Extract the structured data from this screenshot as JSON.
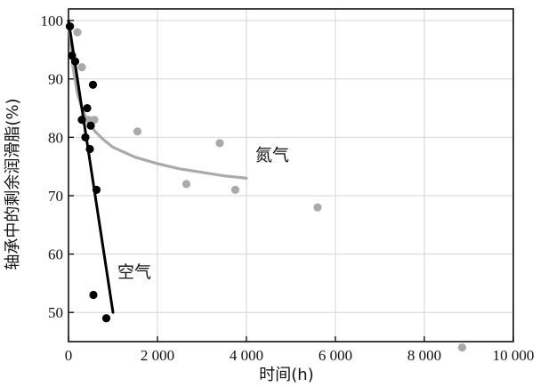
{
  "chart_data": {
    "type": "scatter",
    "xlabel": "时间(h)",
    "ylabel": "轴承中的剩余润滑脂(%)",
    "xlim": [
      0,
      10000
    ],
    "ylim": [
      45,
      102
    ],
    "x_ticks": [
      0,
      2000,
      4000,
      6000,
      8000,
      10000
    ],
    "x_tick_labels": [
      "0",
      "2 000",
      "4 000",
      "6 000",
      "8 000",
      "10 000"
    ],
    "y_ticks": [
      50,
      60,
      70,
      80,
      90,
      100
    ],
    "y_tick_labels": [
      "50",
      "60",
      "70",
      "80",
      "90",
      "100"
    ],
    "grid": true,
    "series": [
      {
        "name": "空气",
        "color": "#000000",
        "points": [
          [
            30,
            99
          ],
          [
            80,
            94
          ],
          [
            150,
            93
          ],
          [
            300,
            83
          ],
          [
            380,
            80
          ],
          [
            420,
            85
          ],
          [
            480,
            78
          ],
          [
            500,
            82
          ],
          [
            550,
            89
          ],
          [
            630,
            71
          ],
          [
            560,
            53
          ],
          [
            850,
            49
          ]
        ],
        "fit_line": [
          [
            0,
            100
          ],
          [
            1000,
            50
          ]
        ]
      },
      {
        "name": "氮气",
        "color": "#aaaaaa",
        "points": [
          [
            40,
            99
          ],
          [
            200,
            98
          ],
          [
            300,
            92
          ],
          [
            450,
            83
          ],
          [
            580,
            83
          ],
          [
            1550,
            81
          ],
          [
            2650,
            72
          ],
          [
            3400,
            79
          ],
          [
            3750,
            71
          ],
          [
            5600,
            68
          ],
          [
            8850,
            44
          ]
        ],
        "fit_curve": [
          [
            0,
            100
          ],
          [
            100,
            92
          ],
          [
            200,
            87.5
          ],
          [
            300,
            85
          ],
          [
            450,
            82.5
          ],
          [
            600,
            81
          ],
          [
            800,
            79.5
          ],
          [
            1000,
            78.3
          ],
          [
            1500,
            76.6
          ],
          [
            2000,
            75.5
          ],
          [
            2500,
            74.6
          ],
          [
            3000,
            74
          ],
          [
            3500,
            73.4
          ],
          [
            4000,
            73
          ]
        ]
      }
    ],
    "annotations": [
      {
        "text": "氮气",
        "x": 4200,
        "y": 76
      },
      {
        "text": "空气",
        "x": 1100,
        "y": 56
      }
    ]
  }
}
